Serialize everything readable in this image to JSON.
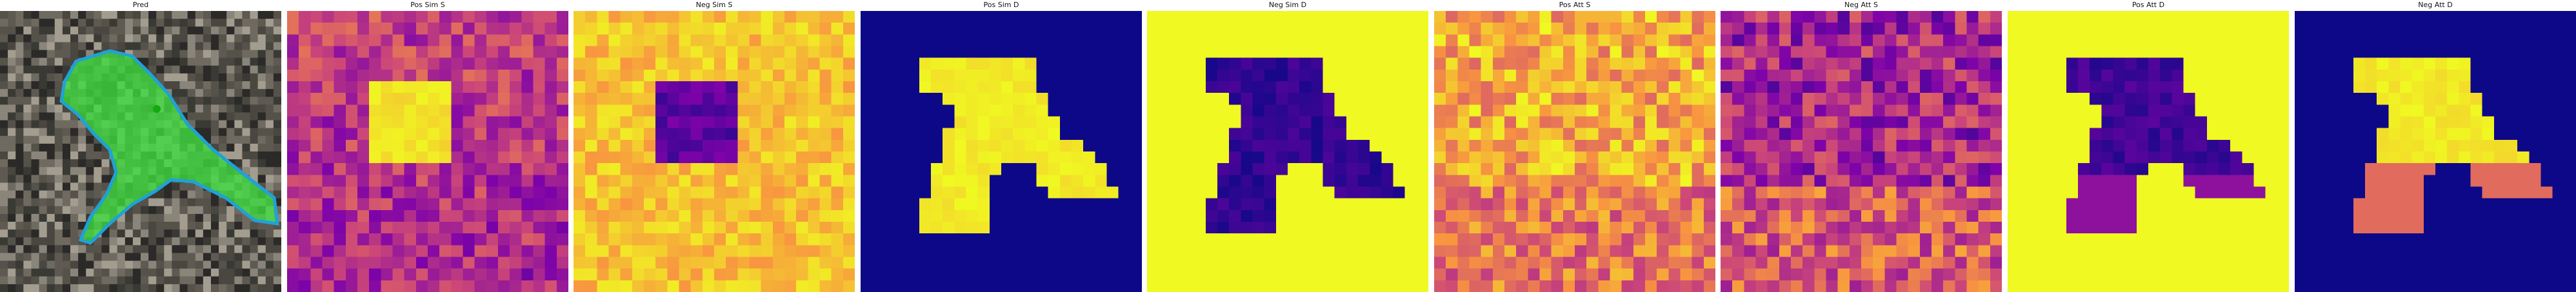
{
  "panels": [
    {
      "title": "Pred",
      "kind": "photo",
      "colormap": "none"
    },
    {
      "title": "Pos Sim S",
      "kind": "heatmap",
      "colormap": "plasma"
    },
    {
      "title": "Neg Sim S",
      "kind": "heatmap",
      "colormap": "plasma"
    },
    {
      "title": "Pos Sim D",
      "kind": "heatmap",
      "colormap": "plasma"
    },
    {
      "title": "Neg Sim D",
      "kind": "heatmap",
      "colormap": "plasma"
    },
    {
      "title": "Pos Att S",
      "kind": "heatmap",
      "colormap": "plasma"
    },
    {
      "title": "Neg Att S",
      "kind": "heatmap",
      "colormap": "plasma"
    },
    {
      "title": "Pos Att D",
      "kind": "heatmap",
      "colormap": "plasma"
    },
    {
      "title": "Neg Att D",
      "kind": "heatmap",
      "colormap": "plasma"
    }
  ],
  "colors": {
    "plasma_low": "#0d0887",
    "plasma_mid": "#cc4778",
    "plasma_high": "#f0f921",
    "mask_fill": "#3ddc3d",
    "mask_edge": "#1fa2d6"
  }
}
